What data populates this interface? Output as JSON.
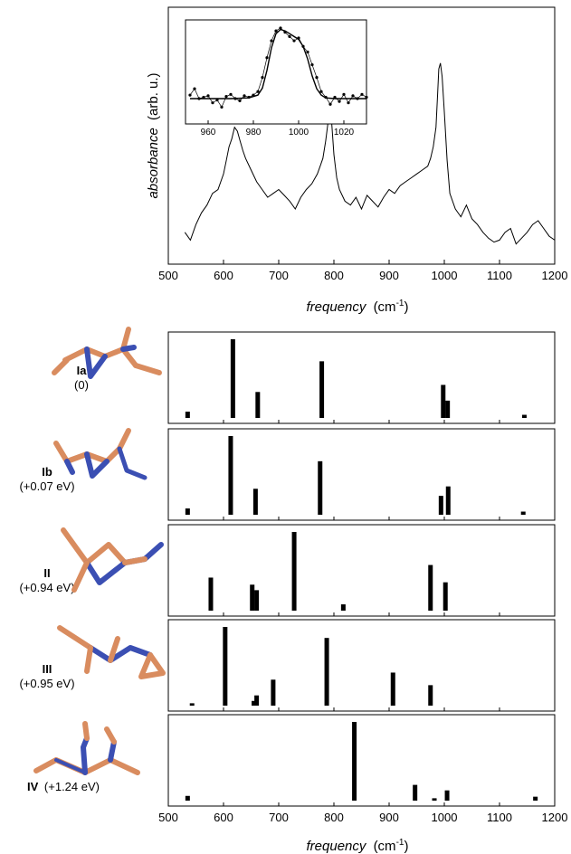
{
  "chart_data": [
    {
      "type": "line",
      "name": "experimental-spectrum",
      "xlabel": "frequency",
      "xunit": "(cm",
      "xunit_sup": "-1",
      "xunit_close": ")",
      "ylabel_italic": "absorbance",
      "ylabel_unit": "(arb. u.)",
      "xlim": [
        500,
        1200
      ],
      "xticks": [
        "500",
        "600",
        "700",
        "800",
        "900",
        "1000",
        "1100",
        "1200"
      ],
      "yticks": [],
      "series": [
        {
          "x": [
            530,
            540,
            550,
            560,
            570,
            580,
            590,
            600,
            605,
            610,
            615,
            620,
            625,
            630,
            635,
            640,
            650,
            660,
            670,
            680,
            690,
            700,
            710,
            720,
            730,
            740,
            750,
            760,
            770,
            775,
            780,
            785,
            790,
            793,
            796,
            800,
            805,
            810,
            820,
            830,
            840,
            850,
            860,
            870,
            880,
            890,
            900,
            910,
            920,
            930,
            940,
            950,
            960,
            970,
            975,
            980,
            985,
            988,
            990,
            993,
            996,
            1000,
            1005,
            1010,
            1020,
            1030,
            1040,
            1050,
            1060,
            1070,
            1080,
            1090,
            1100,
            1110,
            1120,
            1130,
            1140,
            1150,
            1160,
            1170,
            1180,
            1190,
            1200
          ],
          "y": [
            0.08,
            0.04,
            0.12,
            0.18,
            0.22,
            0.28,
            0.3,
            0.38,
            0.45,
            0.52,
            0.56,
            0.62,
            0.6,
            0.55,
            0.5,
            0.46,
            0.4,
            0.34,
            0.3,
            0.26,
            0.28,
            0.3,
            0.27,
            0.24,
            0.2,
            0.26,
            0.3,
            0.33,
            0.38,
            0.42,
            0.46,
            0.55,
            0.66,
            0.72,
            0.64,
            0.48,
            0.36,
            0.3,
            0.24,
            0.22,
            0.26,
            0.2,
            0.27,
            0.24,
            0.21,
            0.26,
            0.3,
            0.28,
            0.32,
            0.34,
            0.36,
            0.38,
            0.4,
            0.42,
            0.46,
            0.52,
            0.62,
            0.8,
            0.92,
            0.95,
            0.88,
            0.7,
            0.45,
            0.28,
            0.2,
            0.16,
            0.22,
            0.15,
            0.12,
            0.08,
            0.05,
            0.03,
            0.04,
            0.08,
            0.1,
            0.02,
            0.05,
            0.08,
            0.12,
            0.14,
            0.1,
            0.06,
            0.04
          ]
        }
      ]
    },
    {
      "type": "line",
      "name": "inset",
      "xlim": [
        950,
        1030
      ],
      "xticks": [
        "960",
        "980",
        "1000",
        "1020"
      ],
      "series": [
        {
          "name": "data",
          "x": [
            952,
            954,
            956,
            958,
            960,
            962,
            964,
            966,
            968,
            970,
            972,
            974,
            976,
            978,
            980,
            982,
            984,
            986,
            988,
            990,
            992,
            994,
            996,
            998,
            1000,
            1002,
            1004,
            1006,
            1008,
            1010,
            1012,
            1014,
            1016,
            1018,
            1020,
            1022,
            1024,
            1026,
            1028,
            1030
          ],
          "y": [
            0.05,
            0.14,
            0.0,
            0.02,
            0.04,
            -0.06,
            -0.02,
            -0.12,
            0.03,
            0.06,
            0.0,
            -0.03,
            0.04,
            0.02,
            0.05,
            0.1,
            0.3,
            0.58,
            0.82,
            0.96,
            1.0,
            0.94,
            0.88,
            0.82,
            0.86,
            0.74,
            0.66,
            0.48,
            0.3,
            0.1,
            0.02,
            -0.08,
            0.02,
            -0.04,
            0.06,
            -0.06,
            0.04,
            0.0,
            0.06,
            0.02
          ]
        },
        {
          "name": "fit",
          "x": [
            952,
            960,
            970,
            978,
            982,
            984,
            986,
            988,
            990,
            992,
            994,
            996,
            998,
            1000,
            1002,
            1004,
            1006,
            1008,
            1010,
            1012,
            1016,
            1020,
            1030
          ],
          "y": [
            0,
            0,
            0,
            0.01,
            0.05,
            0.15,
            0.4,
            0.72,
            0.92,
            0.98,
            0.96,
            0.92,
            0.88,
            0.84,
            0.74,
            0.56,
            0.32,
            0.14,
            0.05,
            0.01,
            0,
            0,
            0
          ]
        }
      ]
    },
    {
      "type": "bar",
      "name": "calc-spectra",
      "xlabel": "frequency",
      "xunit": "(cm",
      "xunit_sup": "-1",
      "xunit_close": ")",
      "xlim": [
        500,
        1200
      ],
      "xticks": [
        "500",
        "600",
        "700",
        "800",
        "900",
        "1000",
        "1100",
        "1200"
      ],
      "isomers": [
        {
          "id": "Ia",
          "energy": "(0)",
          "x": [
            535,
            617,
            662,
            778,
            998,
            1006,
            1145
          ],
          "h": [
            0.08,
            1.0,
            0.33,
            0.72,
            0.42,
            0.22,
            0.04
          ]
        },
        {
          "id": "Ib",
          "energy": "(+0.07 eV)",
          "x": [
            535,
            613,
            658,
            775,
            994,
            1007,
            1143
          ],
          "h": [
            0.08,
            1.0,
            0.33,
            0.68,
            0.24,
            0.36,
            0.04
          ]
        },
        {
          "id": "II",
          "energy": "(+0.94 eV)",
          "x": [
            577,
            652,
            660,
            728,
            817,
            975,
            1002
          ],
          "h": [
            0.42,
            0.33,
            0.26,
            1.0,
            0.08,
            0.58,
            0.36
          ]
        },
        {
          "id": "III",
          "energy": "(+0.95 eV)",
          "x": [
            543,
            655,
            660,
            690,
            603,
            787,
            907,
            975
          ],
          "h": [
            0.03,
            0.06,
            0.13,
            0.33,
            1.0,
            0.86,
            0.42,
            0.26
          ]
        },
        {
          "id": "IV",
          "energy": "(+1.24 eV)",
          "x": [
            535,
            837,
            947,
            982,
            1005,
            1165
          ],
          "h": [
            0.06,
            1.0,
            0.2,
            0.03,
            0.13,
            0.05
          ]
        }
      ]
    }
  ],
  "colors": {
    "nitrogen": "#3b4fb3",
    "carbon": "#d98c5f",
    "stroke": "#000000"
  }
}
